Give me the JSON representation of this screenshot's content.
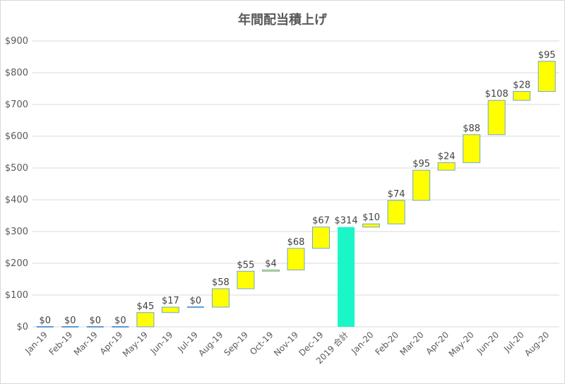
{
  "chart_data": {
    "type": "bar",
    "subtype": "waterfall",
    "title": "年間配当積上げ",
    "xlabel": "",
    "ylabel": "",
    "ylim": [
      0,
      900
    ],
    "ytick_values": [
      0,
      100,
      200,
      300,
      400,
      500,
      600,
      700,
      800,
      900
    ],
    "ytick_labels": [
      "$0",
      "$100",
      "$200",
      "$300",
      "$400",
      "$500",
      "$600",
      "$700",
      "$800",
      "$900"
    ],
    "grid": true,
    "legend": "none",
    "colors": {
      "increase": "#ffff00",
      "increase_border": "#70a7cf",
      "total": "#1bf6c7",
      "zero_marker": "#5b9bd5",
      "grid": "#d9d9d9",
      "text": "#595959"
    },
    "categories": [
      "Jan-19",
      "Feb-19",
      "Mar-19",
      "Apr-19",
      "May-19",
      "Jun-19",
      "Jul-19",
      "Aug-19",
      "Sep-19",
      "Oct-19",
      "Nov-19",
      "Dec-19",
      "2019 合計",
      "Jan-20",
      "Feb-20",
      "Mar-20",
      "Apr-20",
      "May-20",
      "Jun-20",
      "Jul-20",
      "Aug-20"
    ],
    "values": [
      0,
      0,
      0,
      0,
      45,
      17,
      0,
      58,
      55,
      4,
      68,
      67,
      314,
      10,
      74,
      95,
      24,
      88,
      108,
      28,
      95
    ],
    "kinds": [
      "delta",
      "delta",
      "delta",
      "delta",
      "delta",
      "delta",
      "delta",
      "delta",
      "delta",
      "delta",
      "delta",
      "delta",
      "total",
      "delta",
      "delta",
      "delta",
      "delta",
      "delta",
      "delta",
      "delta",
      "delta"
    ],
    "data_labels": [
      "$0",
      "$0",
      "$0",
      "$0",
      "$45",
      "$17",
      "$0",
      "$58",
      "$55",
      "$4",
      "$68",
      "$67",
      "$314",
      "$10",
      "$74",
      "$95",
      "$24",
      "$88",
      "$108",
      "$28",
      "$95"
    ]
  }
}
